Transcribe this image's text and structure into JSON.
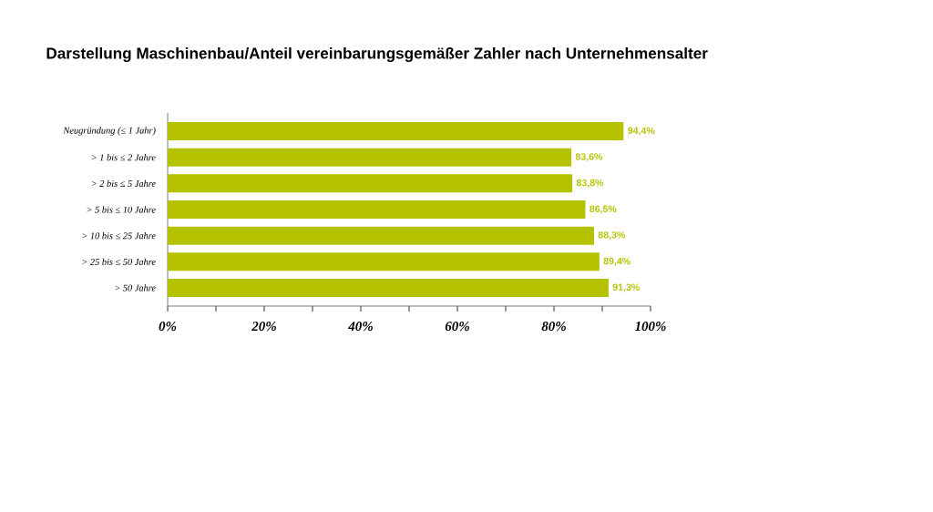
{
  "chart_data": {
    "type": "bar",
    "orientation": "horizontal",
    "title": "Darstellung Maschinenbau/Anteil vereinbarungsgemäßer Zahler nach Unternehmensalter",
    "categories": [
      "Neugründung (≤ 1 Jahr)",
      "> 1 bis ≤ 2 Jahre",
      "> 2 bis ≤ 5 Jahre",
      "> 5 bis ≤ 10 Jahre",
      "> 10 bis ≤ 25 Jahre",
      "> 25 bis ≤ 50 Jahre",
      "> 50 Jahre"
    ],
    "values": [
      94.4,
      83.6,
      83.8,
      86.5,
      88.3,
      89.4,
      91.3
    ],
    "value_labels": [
      "94,4%",
      "83,6%",
      "83,8%",
      "86,5%",
      "88,3%",
      "89,4%",
      "91,3%"
    ],
    "color": "#b5c200",
    "xlim": [
      0,
      100
    ],
    "xticks": [
      {
        "value": 0,
        "label": "0%"
      },
      {
        "value": 10,
        "label": null
      },
      {
        "value": 20,
        "label": "20%"
      },
      {
        "value": 30,
        "label": null
      },
      {
        "value": 40,
        "label": "40%"
      },
      {
        "value": 50,
        "label": null
      },
      {
        "value": 60,
        "label": "60%"
      },
      {
        "value": 70,
        "label": null
      },
      {
        "value": 80,
        "label": "80%"
      },
      {
        "value": 90,
        "label": null
      },
      {
        "value": 100,
        "label": "100%"
      }
    ]
  }
}
